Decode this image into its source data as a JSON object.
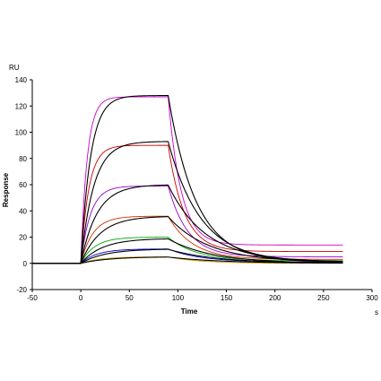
{
  "chart_data": {
    "type": "line",
    "xlabel": "Time",
    "ylabel": "Response",
    "x_unit": "s",
    "y_unit": "RU",
    "xlim": [
      -50,
      300
    ],
    "ylim": [
      -20,
      140
    ],
    "x_ticks": [
      -50,
      0,
      50,
      100,
      150,
      200,
      250,
      300
    ],
    "y_ticks": [
      -20,
      0,
      20,
      40,
      60,
      80,
      100,
      120,
      140
    ],
    "grid": false,
    "kinetics": {
      "injection_start": 0,
      "injection_end": 90,
      "run_end": 270,
      "baseline_start": -50
    },
    "series": [
      {
        "kind": "measured",
        "color": "#cc00cc",
        "rmax": 127,
        "plateau": 14,
        "k_on": 0.15,
        "k_off": 0.075
      },
      {
        "kind": "measured",
        "color": "#cc0000",
        "rmax": 90,
        "plateau": 9,
        "k_on": 0.12,
        "k_off": 0.06
      },
      {
        "kind": "measured",
        "color": "#9900cc",
        "rmax": 59,
        "plateau": 5,
        "k_on": 0.1,
        "k_off": 0.05
      },
      {
        "kind": "measured",
        "color": "#cc3300",
        "rmax": 36,
        "plateau": 3,
        "k_on": 0.08,
        "k_off": 0.04
      },
      {
        "kind": "measured",
        "color": "#00aa00",
        "rmax": 20,
        "plateau": 2,
        "k_on": 0.07,
        "k_off": 0.035
      },
      {
        "kind": "measured",
        "color": "#0000cc",
        "rmax": 11,
        "plateau": 1,
        "k_on": 0.06,
        "k_off": 0.03
      },
      {
        "kind": "measured",
        "color": "#cc9900",
        "rmax": 5,
        "plateau": 0,
        "k_on": 0.05,
        "k_off": 0.03
      },
      {
        "kind": "fit",
        "color": "#000000",
        "rmax": 128,
        "plateau": 1,
        "k_on": 0.1,
        "k_off": 0.035
      },
      {
        "kind": "fit",
        "color": "#000000",
        "rmax": 93,
        "plateau": 1,
        "k_on": 0.075,
        "k_off": 0.03
      },
      {
        "kind": "fit",
        "color": "#000000",
        "rmax": 60,
        "plateau": 1,
        "k_on": 0.06,
        "k_off": 0.026
      },
      {
        "kind": "fit",
        "color": "#000000",
        "rmax": 36,
        "plateau": 1,
        "k_on": 0.05,
        "k_off": 0.024
      },
      {
        "kind": "fit",
        "color": "#000000",
        "rmax": 19,
        "plateau": 0,
        "k_on": 0.045,
        "k_off": 0.022
      },
      {
        "kind": "fit",
        "color": "#000000",
        "rmax": 11,
        "plateau": 0,
        "k_on": 0.04,
        "k_off": 0.02
      },
      {
        "kind": "fit",
        "color": "#000000",
        "rmax": 5,
        "plateau": 0,
        "k_on": 0.035,
        "k_off": 0.018
      }
    ]
  }
}
